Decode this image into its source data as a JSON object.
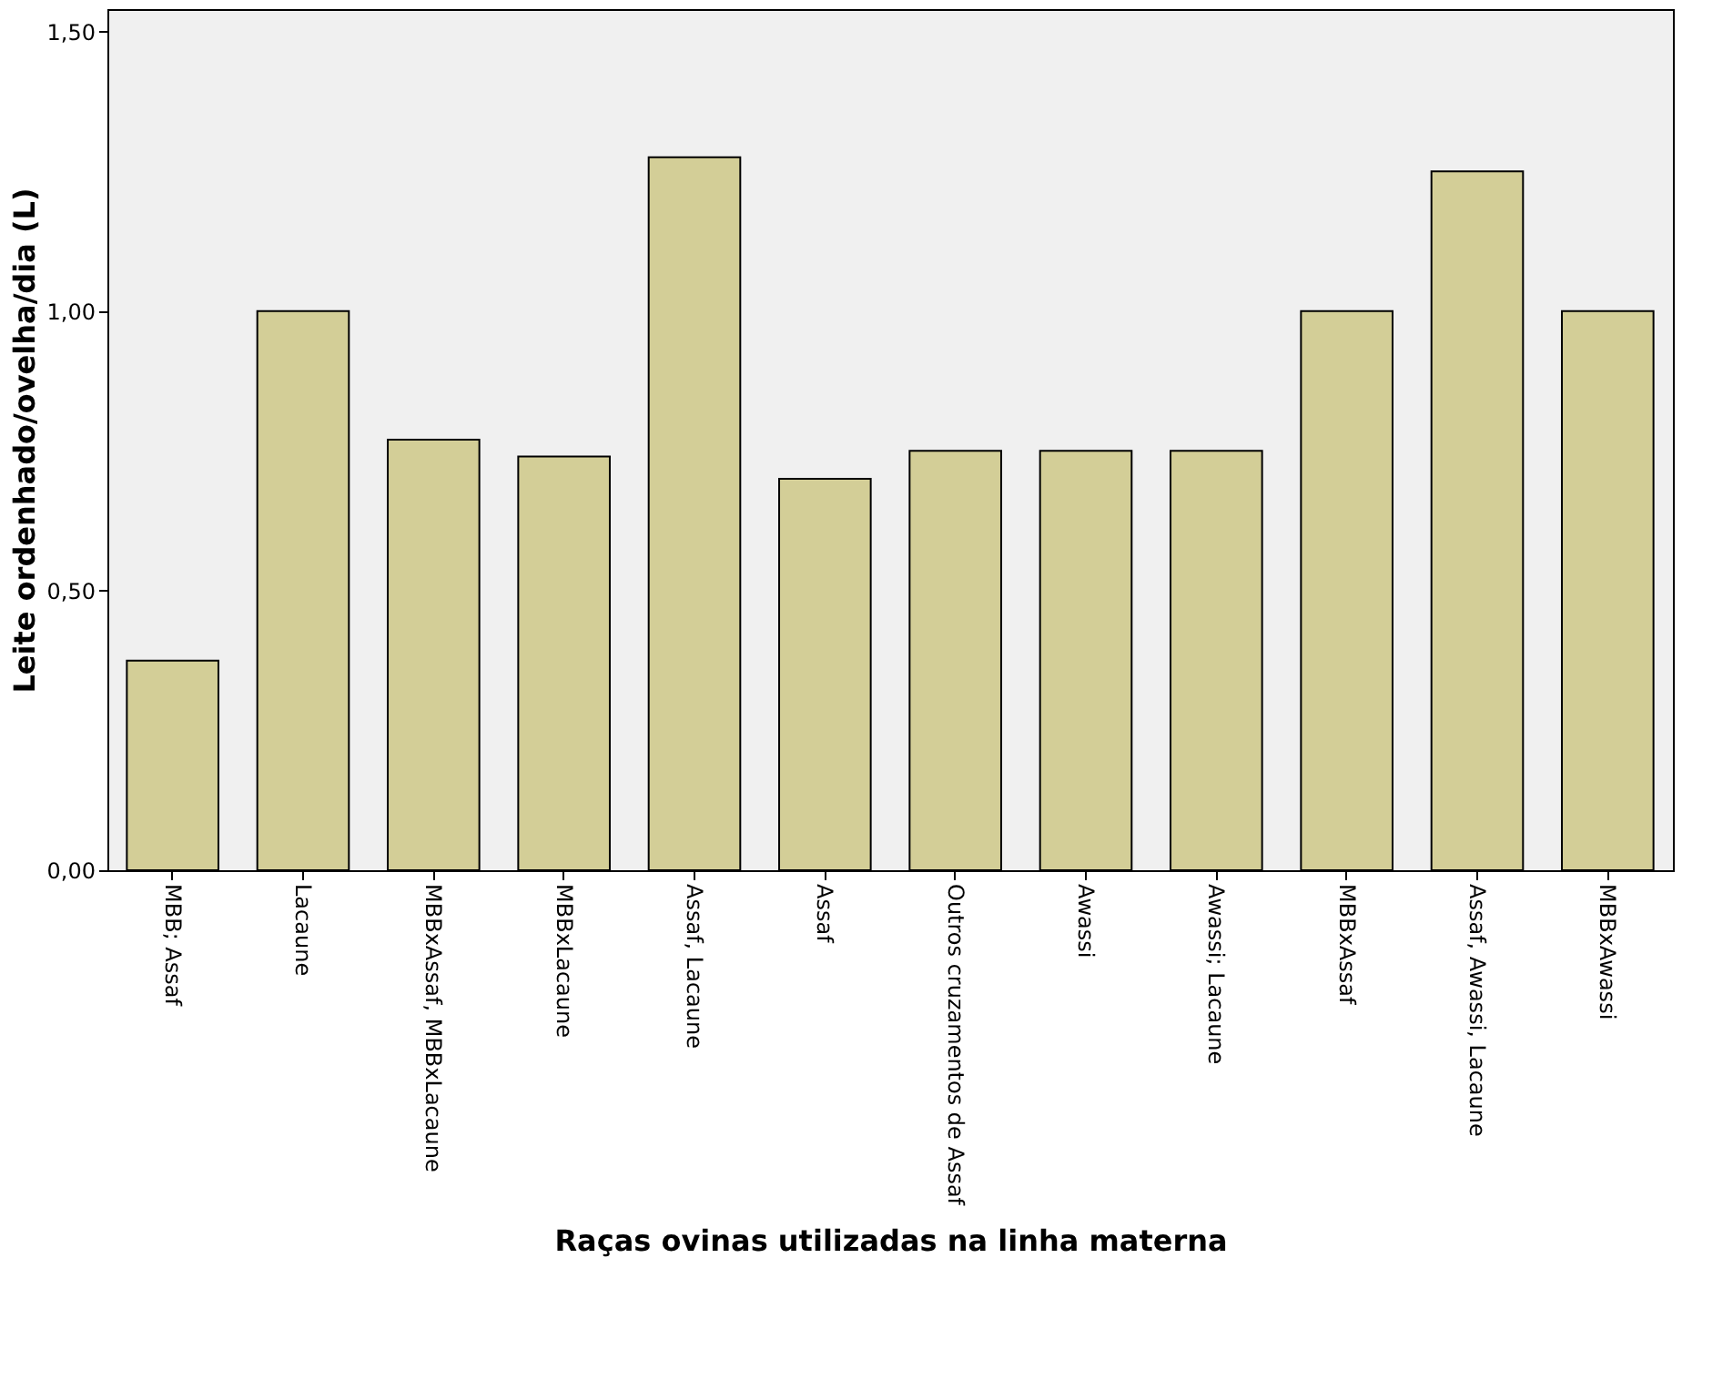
{
  "chart_data": {
    "type": "bar",
    "xlabel": "Raças ovinas utilizadas na linha materna",
    "ylabel": "Leite ordenhado/ovelha/dia (L)",
    "categories": [
      "MBB; Assaf",
      "Lacaune",
      "MBBxAssaf, MBBxLacaune",
      "MBBxLacaune",
      "Assaf, Lacaune",
      "Assaf",
      "Outros cruzamentos de Assaf",
      "Awassi",
      "Awassi; Lacaune",
      "MBBxAssaf",
      "Assaf, Awassi, Lacaune",
      "MBBxAwassi"
    ],
    "values": [
      0.375,
      1.0,
      0.77,
      0.74,
      1.275,
      0.7,
      0.75,
      0.75,
      0.75,
      1.0,
      1.25,
      1.0
    ],
    "color": "#d3ce97",
    "ylim": [
      0,
      1.54
    ],
    "yticks": [
      {
        "value": 0,
        "label": "0,00"
      },
      {
        "value": 0.5,
        "label": "0,50"
      },
      {
        "value": 1.0,
        "label": "1,00"
      },
      {
        "value": 1.5,
        "label": "1,50"
      }
    ],
    "grid": false
  }
}
